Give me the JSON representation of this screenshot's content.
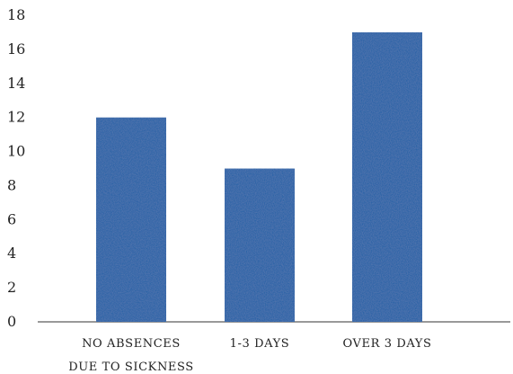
{
  "chart_data": {
    "type": "bar",
    "categories": [
      "NO ABSENCES DUE TO SICKNESS",
      "1-3 DAYS",
      "OVER 3 DAYS"
    ],
    "category_label_lines": [
      [
        "NO ABSENCES",
        "DUE TO SICKNESS"
      ],
      [
        "1-3 DAYS"
      ],
      [
        "OVER 3 DAYS"
      ]
    ],
    "values": [
      12,
      9,
      17
    ],
    "title": "",
    "xlabel": "",
    "ylabel": "",
    "ylim": [
      0,
      18
    ],
    "yticks": [
      0,
      2,
      4,
      6,
      8,
      10,
      12,
      14,
      16,
      18
    ],
    "ytick_labels": [
      "0",
      "2",
      "4",
      "6",
      "8",
      "10",
      "12",
      "14",
      "16",
      "18"
    ],
    "grid": false,
    "legend": "none",
    "bar_color": "#0f5ba4"
  }
}
